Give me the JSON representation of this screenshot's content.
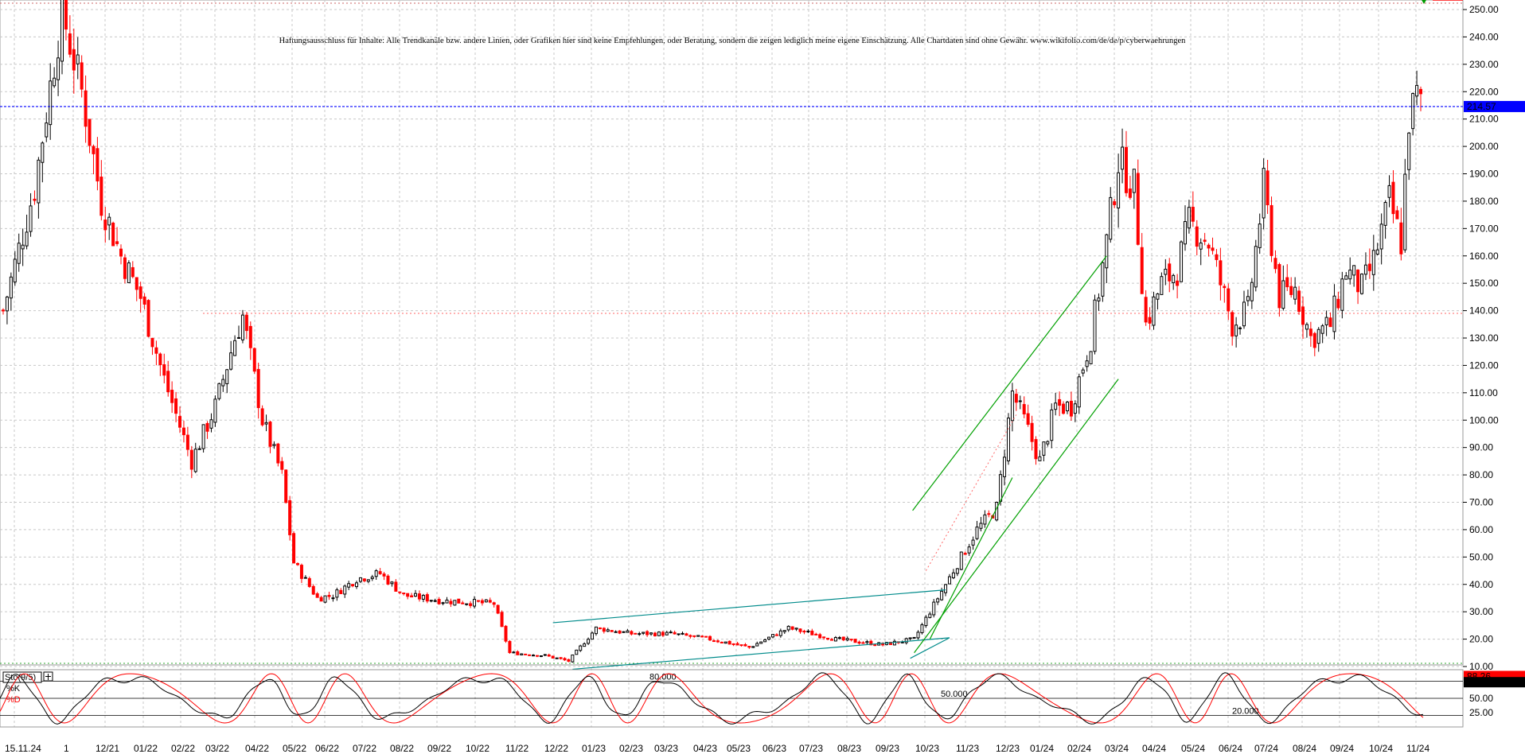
{
  "chart_data": {
    "type": "candlestick",
    "title": "",
    "disclaimer": "Haftungsausschluss für Inhalte: Alle Trendkanäle bzw. andere Linien, oder Grafiken hier sind keine Empfehlungen, oder Beratung, sondern die zeigen lediglich meine eigene Einschätzung. Alle Chartdaten sind ohne Gewähr. www.wikifolio.com/de/de/p/cyberwaehrungen",
    "xlabel": "",
    "ylabel": "",
    "ylim": [
      10,
      252
    ],
    "y_ticks": [
      "250.00",
      "240.00",
      "230.00",
      "220.00",
      "210.00",
      "200.00",
      "190.00",
      "180.00",
      "170.00",
      "160.00",
      "150.00",
      "140.00",
      "130.00",
      "120.00",
      "110.00",
      "100.00",
      "90.00",
      "80.00",
      "70.00",
      "60.00",
      "50.00",
      "40.00",
      "30.00",
      "20.00",
      "10.00"
    ],
    "x_ticks": [
      "15.11.24",
      "1",
      "12/21",
      "01/22",
      "02/22",
      "03/22",
      "04/22",
      "05/22",
      "06/22",
      "07/22",
      "08/22",
      "09/22",
      "10/22",
      "11/22",
      "12/22",
      "01/23",
      "02/23",
      "03/23",
      "04/23",
      "05/23",
      "06/23",
      "07/23",
      "08/23",
      "09/23",
      "10/23",
      "11/23",
      "12/23",
      "01/24",
      "02/24",
      "03/24",
      "04/24",
      "05/24",
      "06/24",
      "07/24",
      "08/24",
      "09/24",
      "10/24",
      "11/24"
    ],
    "last_price": "214.57",
    "reference_level": 139,
    "key_points": [
      {
        "t": 0,
        "v": 140
      },
      {
        "t": 40,
        "v": 185
      },
      {
        "t": 75,
        "v": 250
      },
      {
        "t": 100,
        "v": 220
      },
      {
        "t": 125,
        "v": 180
      },
      {
        "t": 150,
        "v": 160
      },
      {
        "t": 175,
        "v": 145
      },
      {
        "t": 205,
        "v": 115
      },
      {
        "t": 240,
        "v": 85
      },
      {
        "t": 270,
        "v": 105
      },
      {
        "t": 295,
        "v": 130
      },
      {
        "t": 305,
        "v": 138
      },
      {
        "t": 330,
        "v": 100
      },
      {
        "t": 355,
        "v": 80
      },
      {
        "t": 370,
        "v": 48
      },
      {
        "t": 400,
        "v": 35
      },
      {
        "t": 420,
        "v": 36
      },
      {
        "t": 450,
        "v": 42
      },
      {
        "t": 480,
        "v": 44
      },
      {
        "t": 510,
        "v": 36
      },
      {
        "t": 560,
        "v": 34
      },
      {
        "t": 625,
        "v": 33
      },
      {
        "t": 645,
        "v": 15
      },
      {
        "t": 690,
        "v": 14
      },
      {
        "t": 720,
        "v": 12
      },
      {
        "t": 755,
        "v": 24
      },
      {
        "t": 800,
        "v": 22
      },
      {
        "t": 850,
        "v": 22
      },
      {
        "t": 900,
        "v": 20
      },
      {
        "t": 950,
        "v": 17
      },
      {
        "t": 1000,
        "v": 24
      },
      {
        "t": 1060,
        "v": 20
      },
      {
        "t": 1120,
        "v": 18
      },
      {
        "t": 1160,
        "v": 20
      },
      {
        "t": 1200,
        "v": 40
      },
      {
        "t": 1240,
        "v": 60
      },
      {
        "t": 1265,
        "v": 68
      },
      {
        "t": 1285,
        "v": 110
      },
      {
        "t": 1300,
        "v": 100
      },
      {
        "t": 1320,
        "v": 85
      },
      {
        "t": 1340,
        "v": 105
      },
      {
        "t": 1360,
        "v": 105
      },
      {
        "t": 1385,
        "v": 130
      },
      {
        "t": 1405,
        "v": 165
      },
      {
        "t": 1420,
        "v": 195
      },
      {
        "t": 1440,
        "v": 185
      },
      {
        "t": 1455,
        "v": 135
      },
      {
        "t": 1475,
        "v": 150
      },
      {
        "t": 1495,
        "v": 155
      },
      {
        "t": 1510,
        "v": 172
      },
      {
        "t": 1535,
        "v": 165
      },
      {
        "t": 1565,
        "v": 135
      },
      {
        "t": 1585,
        "v": 140
      },
      {
        "t": 1605,
        "v": 185
      },
      {
        "t": 1625,
        "v": 145
      },
      {
        "t": 1645,
        "v": 148
      },
      {
        "t": 1665,
        "v": 130
      },
      {
        "t": 1690,
        "v": 135
      },
      {
        "t": 1710,
        "v": 155
      },
      {
        "t": 1730,
        "v": 148
      },
      {
        "t": 1745,
        "v": 158
      },
      {
        "t": 1765,
        "v": 180
      },
      {
        "t": 1780,
        "v": 165
      },
      {
        "t": 1790,
        "v": 210
      },
      {
        "t": 1800,
        "v": 218
      },
      {
        "t": 1805,
        "v": 214.57
      }
    ],
    "trend_channels": [
      {
        "color": "#008b8b",
        "from": [
          700,
          26
        ],
        "to": [
          1200,
          38
        ]
      },
      {
        "color": "#008b8b",
        "from": [
          725,
          9
        ],
        "to": [
          1205,
          20.5
        ]
      },
      {
        "color": "#008b8b",
        "from": [
          1155,
          13
        ],
        "to": [
          1205,
          20.5
        ]
      },
      {
        "color": "#00a000",
        "from": [
          1158,
          67
        ],
        "to": [
          1405,
          160
        ]
      },
      {
        "color": "#00a000",
        "from": [
          1160,
          15
        ],
        "to": [
          1420,
          115
        ]
      },
      {
        "color": "#00a000",
        "from": [
          1180,
          20
        ],
        "to": [
          1285,
          79
        ]
      }
    ],
    "stochastic": {
      "label": "Sto(9/5)",
      "k_label": "%K",
      "d_label": "%D",
      "k_value": "88.26",
      "d_value": "85.81",
      "levels": [
        "80.000",
        "50.000",
        "20.000"
      ],
      "ticks": [
        "75.00",
        "50.00",
        "25.00"
      ],
      "ylim": [
        0,
        100
      ]
    },
    "colors": {
      "up": "#000000",
      "down": "#ff0000",
      "price_line": "#0000ff",
      "channel": "#008b8b",
      "trend": "#00a000"
    }
  }
}
